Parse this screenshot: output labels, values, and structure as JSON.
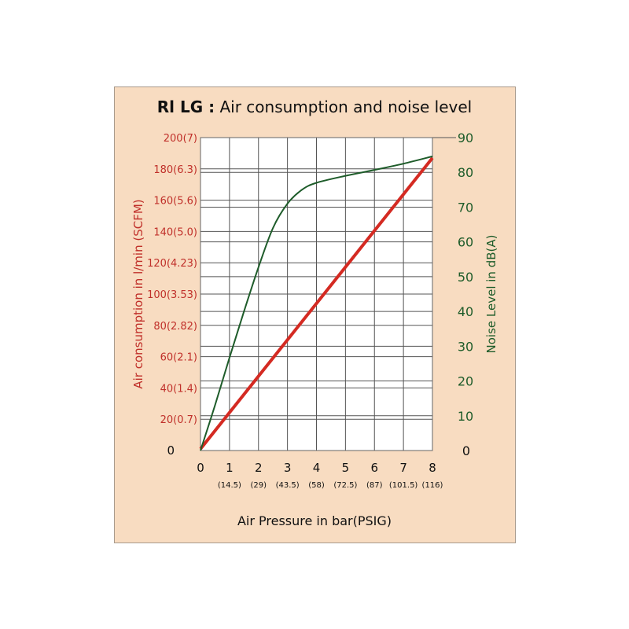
{
  "chart_data": {
    "type": "line",
    "title_bold": "Rl LG :",
    "title": "Air consumption and noise level",
    "xlabel": "Air  Pressure in bar(PSIG)",
    "ylabel_left": "Air  consumption in l/min (SCFM)",
    "ylabel_right": "Noise Level in dB(A)",
    "xlim": [
      0,
      8
    ],
    "ylim_left": [
      0,
      200
    ],
    "ylim_right": [
      0,
      90
    ],
    "grid": true,
    "x_ticks": [
      "0",
      "1",
      "2",
      "3",
      "4",
      "5",
      "6",
      "7",
      "8"
    ],
    "x_sub_ticks": [
      "",
      "(14.5)",
      "(29)",
      "(43.5)",
      "(58)",
      "(72.5)",
      "(87)",
      "(101.5)",
      "(116)"
    ],
    "y_left_ticks": [
      {
        "value": 0,
        "label": "0"
      },
      {
        "value": 20,
        "label": "20(0.7)"
      },
      {
        "value": 40,
        "label": "40(1.4)"
      },
      {
        "value": 60,
        "label": "60(2.1)"
      },
      {
        "value": 80,
        "label": "80(2.82)"
      },
      {
        "value": 100,
        "label": "100(3.53)"
      },
      {
        "value": 120,
        "label": "120(4.23)"
      },
      {
        "value": 140,
        "label": "140(5.0)"
      },
      {
        "value": 160,
        "label": "160(5.6)"
      },
      {
        "value": 180,
        "label": "180(6.3)"
      },
      {
        "value": 200,
        "label": "200(7)"
      }
    ],
    "y_right_ticks": [
      "0",
      "10",
      "20",
      "30",
      "40",
      "50",
      "60",
      "70",
      "80",
      "90"
    ],
    "series": [
      {
        "name": "Air consumption",
        "axis": "left",
        "color": "#d42a22",
        "x": [
          0,
          8
        ],
        "y": [
          1,
          187
        ]
      },
      {
        "name": "Noise level",
        "axis": "right",
        "color": "#1e5c2a",
        "x": [
          0,
          0.5,
          1,
          1.5,
          2,
          2.5,
          3,
          3.5,
          4,
          5,
          6,
          7,
          8
        ],
        "y": [
          0,
          13,
          26.7,
          40,
          52.7,
          64,
          71,
          75,
          77,
          79,
          80.7,
          82.5,
          84.6
        ]
      }
    ]
  }
}
